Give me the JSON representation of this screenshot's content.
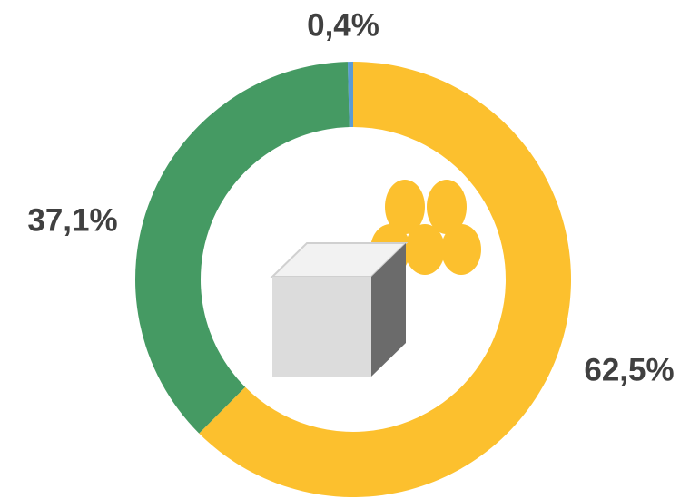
{
  "chart_data": {
    "type": "donut",
    "values": [
      62.5,
      37.1,
      0.4
    ],
    "value_labels": [
      "62,5%",
      "37,1%",
      "0,4%"
    ],
    "colors": [
      "#fcc02e",
      "#459a63",
      "#5b9bd5"
    ]
  }
}
